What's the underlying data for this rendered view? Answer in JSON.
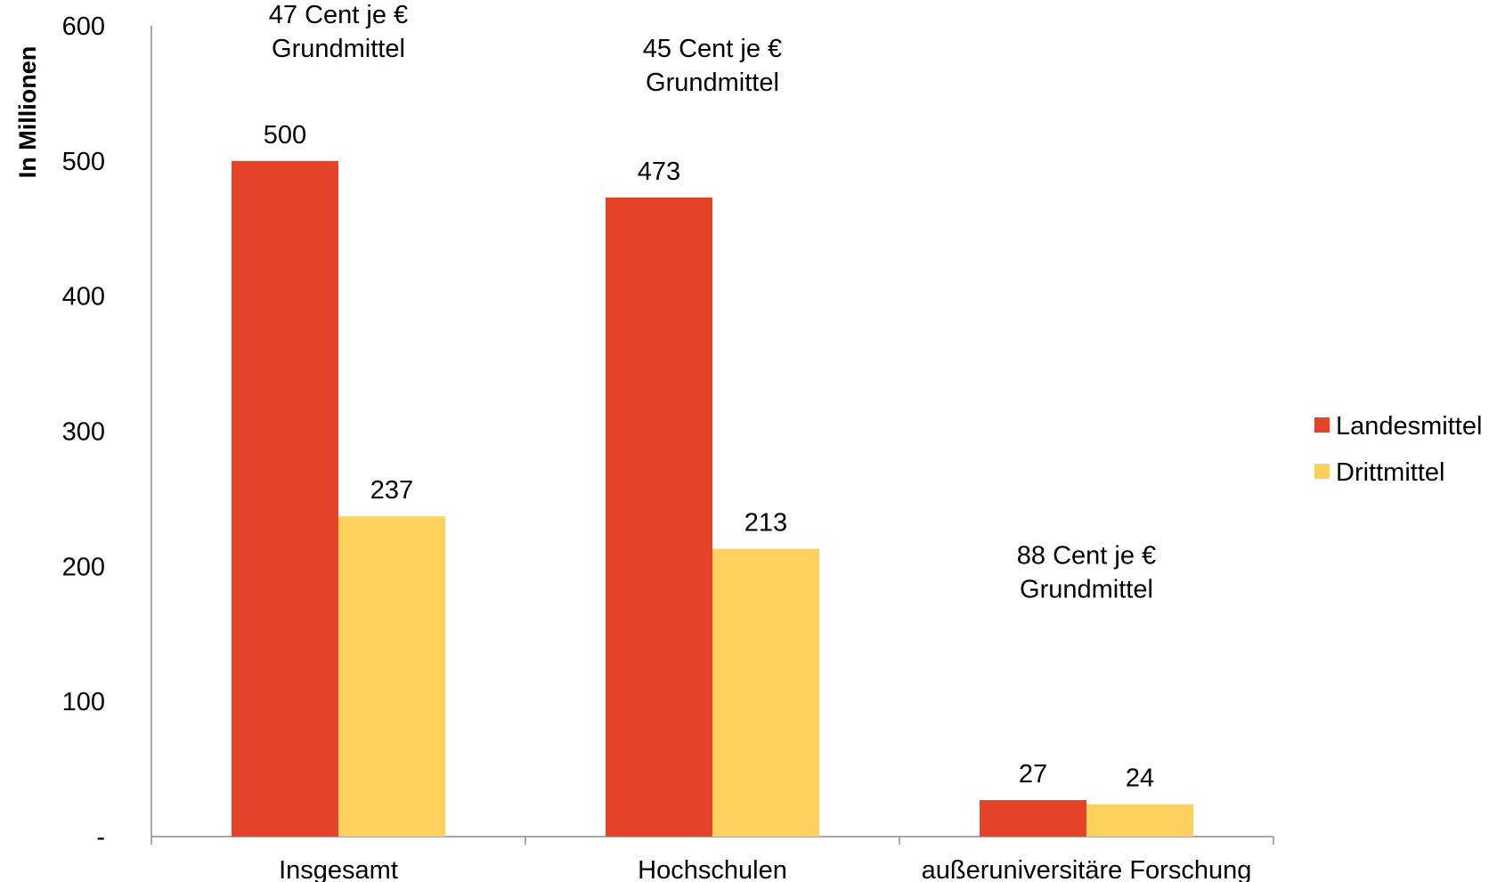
{
  "chart_data": {
    "type": "bar",
    "ylabel": "In Millionen",
    "xlabel": "",
    "ylim": [
      0,
      600
    ],
    "yticks": [
      {
        "value": 0,
        "label": "-"
      },
      {
        "value": 100,
        "label": "100"
      },
      {
        "value": 200,
        "label": "200"
      },
      {
        "value": 300,
        "label": "300"
      },
      {
        "value": 400,
        "label": "400"
      },
      {
        "value": 500,
        "label": "500"
      },
      {
        "value": 600,
        "label": "600"
      }
    ],
    "categories": [
      "Insgesamt",
      "Hochschulen",
      "außeruniversitäre Forschung"
    ],
    "series": [
      {
        "name": "Landesmittel",
        "color": "#E4442A",
        "values": [
          500,
          473,
          27
        ]
      },
      {
        "name": "Drittmittel",
        "color": "#FDD160",
        "values": [
          237,
          213,
          24
        ]
      }
    ],
    "annotations": [
      {
        "category": "Insgesamt",
        "lines": [
          "47 Cent je €",
          "Grundmittel"
        ],
        "value": 600
      },
      {
        "category": "Hochschulen",
        "lines": [
          "45 Cent je €",
          "Grundmittel"
        ],
        "value": 575
      },
      {
        "category": "außeruniversitäre Forschung",
        "lines": [
          "88 Cent je €",
          "Grundmittel"
        ],
        "value": 200
      }
    ],
    "legend": {
      "position": "right"
    },
    "grid": false
  }
}
